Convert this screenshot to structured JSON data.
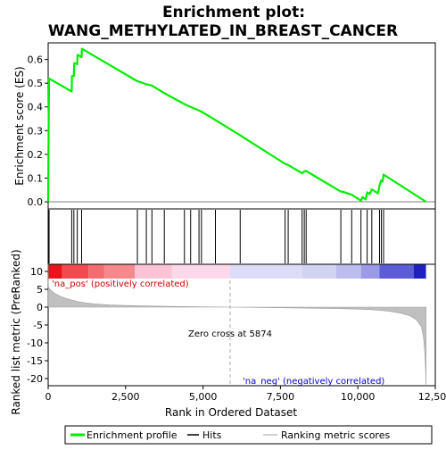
{
  "chart_data": {
    "type": "line",
    "title_line1": "Enrichment plot:",
    "title_line2": "WANG_METHYLATED_IN_BREAST_CANCER",
    "es_panel": {
      "ylabel": "Enrichment score (ES)",
      "ylim": [
        -0.03,
        0.67
      ],
      "yticks": [
        0.0,
        0.1,
        0.2,
        0.3,
        0.4,
        0.5,
        0.6
      ],
      "ytick_labels": [
        "0.0",
        "0.1",
        "0.2",
        "0.3",
        "0.4",
        "0.5",
        "0.6"
      ],
      "line_color": "#00ee00",
      "points": [
        [
          0,
          0.0
        ],
        [
          15,
          0.3
        ],
        [
          30,
          0.52
        ],
        [
          760,
          0.465
        ],
        [
          770,
          0.53
        ],
        [
          830,
          0.53
        ],
        [
          840,
          0.585
        ],
        [
          940,
          0.58
        ],
        [
          950,
          0.62
        ],
        [
          1080,
          0.61
        ],
        [
          1090,
          0.645
        ],
        [
          2880,
          0.508
        ],
        [
          2900,
          0.508
        ],
        [
          3170,
          0.495
        ],
        [
          3190,
          0.495
        ],
        [
          3350,
          0.49
        ],
        [
          3750,
          0.458
        ],
        [
          4400,
          0.412
        ],
        [
          4600,
          0.4
        ],
        [
          4870,
          0.385
        ],
        [
          4950,
          0.38
        ],
        [
          5400,
          0.345
        ],
        [
          6200,
          0.28
        ],
        [
          7650,
          0.16
        ],
        [
          7750,
          0.155
        ],
        [
          8200,
          0.12
        ],
        [
          8270,
          0.128
        ],
        [
          8330,
          0.13
        ],
        [
          9450,
          0.043
        ],
        [
          9500,
          0.043
        ],
        [
          9800,
          0.03
        ],
        [
          10100,
          0.005
        ],
        [
          10150,
          0.02
        ],
        [
          10250,
          0.01
        ],
        [
          10300,
          0.04
        ],
        [
          10380,
          0.033
        ],
        [
          10450,
          0.052
        ],
        [
          10650,
          0.035
        ],
        [
          10700,
          0.07
        ],
        [
          10760,
          0.092
        ],
        [
          10800,
          0.085
        ],
        [
          10830,
          0.115
        ],
        [
          12200,
          0.0
        ]
      ]
    },
    "hits_panel": {
      "hits": [
        10,
        30,
        760,
        830,
        940,
        1080,
        2880,
        3170,
        3350,
        3750,
        4400,
        4600,
        4870,
        4950,
        5400,
        6200,
        7650,
        7750,
        8200,
        8270,
        8330,
        9450,
        9800,
        10100,
        10300,
        10450,
        10700,
        10760,
        10830
      ]
    },
    "metric_panel": {
      "ylabel": "Ranked list metric (PreRanked)",
      "ylim": [
        -22,
        12
      ],
      "yticks": [
        10,
        5,
        0,
        -5,
        -10,
        -15,
        -20
      ],
      "ytick_labels": [
        "10",
        "5",
        "0",
        "-5",
        "-10",
        "-15",
        "-20"
      ],
      "fill_color": "#c0c0c0",
      "profile": [
        [
          0,
          12.0
        ],
        [
          5,
          6.0
        ],
        [
          30,
          5.3
        ],
        [
          100,
          4.6
        ],
        [
          200,
          3.9
        ],
        [
          400,
          3.0
        ],
        [
          600,
          2.4
        ],
        [
          800,
          1.9
        ],
        [
          1000,
          1.5
        ],
        [
          1200,
          1.2
        ],
        [
          1500,
          0.9
        ],
        [
          2000,
          0.6
        ],
        [
          3000,
          0.35
        ],
        [
          4000,
          0.2
        ],
        [
          5000,
          0.08
        ],
        [
          5874,
          0.0
        ],
        [
          7000,
          -0.12
        ],
        [
          8000,
          -0.22
        ],
        [
          9000,
          -0.35
        ],
        [
          10000,
          -0.55
        ],
        [
          10500,
          -0.75
        ],
        [
          11000,
          -1.1
        ],
        [
          11400,
          -1.7
        ],
        [
          11700,
          -2.5
        ],
        [
          11900,
          -3.6
        ],
        [
          12050,
          -5.5
        ],
        [
          12120,
          -8.5
        ],
        [
          12160,
          -12.5
        ],
        [
          12190,
          -18.0
        ],
        [
          12200,
          -22.0
        ]
      ],
      "zero_cross": 5874,
      "zero_cross_label": "Zero cross at 5874",
      "pos_label": "'na_pos' (positively correlated)",
      "neg_label": "'na_neg' (negatively correlated)"
    },
    "xaxis": {
      "xlabel": "Rank in Ordered Dataset",
      "xlim": [
        0,
        12500
      ],
      "xticks": [
        0,
        2500,
        5000,
        7500,
        10000,
        12500
      ],
      "xtick_labels": [
        "0",
        "2,500",
        "5,000",
        "7,500",
        "10,000",
        "12,500"
      ]
    },
    "color_bar": {
      "segments": [
        {
          "start": 0,
          "end": 450,
          "color": "#e8151b"
        },
        {
          "start": 450,
          "end": 1300,
          "color": "#f24a4e"
        },
        {
          "start": 1300,
          "end": 1800,
          "color": "#f56c70"
        },
        {
          "start": 1800,
          "end": 2800,
          "color": "#f7898c"
        },
        {
          "start": 2800,
          "end": 4000,
          "color": "#fbc3d5"
        },
        {
          "start": 4000,
          "end": 5874,
          "color": "#fcd8ea"
        },
        {
          "start": 5874,
          "end": 8200,
          "color": "#dcdcf6"
        },
        {
          "start": 8200,
          "end": 9300,
          "color": "#d2d2f3"
        },
        {
          "start": 9300,
          "end": 10100,
          "color": "#bcbcee"
        },
        {
          "start": 10100,
          "end": 10700,
          "color": "#9a9ae6"
        },
        {
          "start": 10700,
          "end": 11800,
          "color": "#5c5cd6"
        },
        {
          "start": 11800,
          "end": 12200,
          "color": "#2020c0"
        }
      ]
    },
    "legend": {
      "items": [
        {
          "label": "Enrichment profile",
          "color": "#00ee00"
        },
        {
          "label": "Hits",
          "color": "#000000"
        },
        {
          "label": "Ranking metric scores",
          "color": "#c0c0c0"
        }
      ]
    }
  }
}
